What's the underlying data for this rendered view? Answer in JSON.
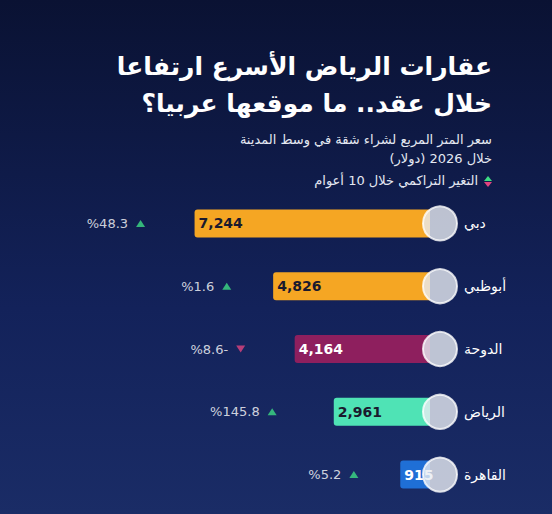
{
  "chart_data": {
    "type": "bar",
    "orientation": "horizontal",
    "title": "عقارات الرياض الأسرع ارتفاعا خلال عقد.. ما موقعها عربيا؟",
    "subtitle": "سعر المتر المربع لشراء شقة في وسط المدينة خلال 2026 (دولار)",
    "annotation": "التغير التراكمي خلال 10 أعوام",
    "categories": [
      "دبي",
      "أبوظبي",
      "الدوحة",
      "الرياض",
      "القاهرة"
    ],
    "values": [
      7244,
      4826,
      4164,
      2961,
      915
    ],
    "value_labels": [
      "7,244",
      "4,826",
      "4,164",
      "2,961",
      "915"
    ],
    "colors": [
      "#f5a623",
      "#f5a623",
      "#8e1f5e",
      "#4fe3b5",
      "#1f6fd6"
    ],
    "changes": [
      48.3,
      1.6,
      -8.6,
      145.8,
      5.2
    ],
    "change_labels": [
      "%48.3",
      "%1.6",
      "%8.6-",
      "%145.8",
      "%5.2"
    ],
    "xlim": [
      0,
      8000
    ],
    "data_labels": true,
    "tick_labels": "y",
    "grid": false
  }
}
